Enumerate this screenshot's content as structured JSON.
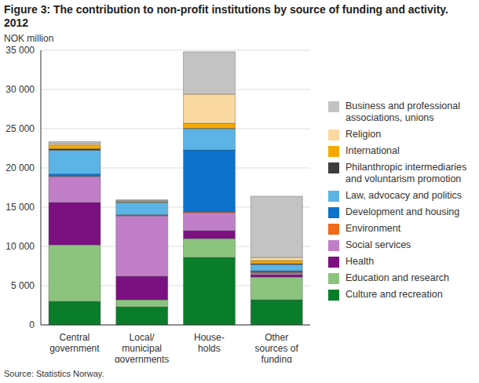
{
  "chart_data": {
    "type": "bar",
    "title": "Figure 3: The contribution to non-profit institutions by source of funding and activity. 2012",
    "y_label": "NOK million",
    "source": "Source: Statistics Norway.",
    "categories": [
      "Central\ngovernment",
      "Local/\nmunicipal\ngovernments",
      "House-\nholds",
      "Other\nsources of\nfunding"
    ],
    "stacked": true,
    "grid": true,
    "legend": "right",
    "ylim": [
      0,
      35000
    ],
    "yticks": [
      0,
      {
        "value": 5000,
        "label": "5 000"
      },
      {
        "value": 10000,
        "label": "10 000"
      },
      {
        "value": 15000,
        "label": "15 000"
      },
      {
        "value": 20000,
        "label": "20 000"
      },
      {
        "value": 25000,
        "label": "25 000"
      },
      {
        "value": 30000,
        "label": "30 000"
      },
      {
        "value": 35000,
        "label": "35 000"
      }
    ],
    "series": [
      {
        "name": "Culture and recreation",
        "color": "#0a7d2b",
        "values": [
          3000,
          2300,
          8600,
          3200
        ]
      },
      {
        "name": "Education and research",
        "color": "#8cc47e",
        "values": [
          7200,
          900,
          2400,
          2900
        ]
      },
      {
        "name": "Health",
        "color": "#7b1080",
        "values": [
          5400,
          3000,
          1000,
          300
        ]
      },
      {
        "name": "Social services",
        "color": "#c07fc8",
        "values": [
          3300,
          7700,
          2300,
          200
        ]
      },
      {
        "name": "Environment",
        "color": "#f26a1b",
        "values": [
          50,
          50,
          100,
          100
        ]
      },
      {
        "name": "Development and housing",
        "color": "#0c72cc",
        "values": [
          300,
          100,
          7900,
          200
        ]
      },
      {
        "name": "Law, advocacy and politics",
        "color": "#5bb4e5",
        "values": [
          3000,
          1550,
          2700,
          800
        ]
      },
      {
        "name": "Philanthropic intermediaries and voluntarism promotion",
        "color": "#3d3d3d",
        "values": [
          200,
          50,
          50,
          100
        ]
      },
      {
        "name": "International",
        "color": "#f5a800",
        "values": [
          500,
          100,
          650,
          400
        ]
      },
      {
        "name": "Religion",
        "color": "#fad9a1",
        "values": [
          200,
          100,
          3700,
          400
        ]
      },
      {
        "name": "Business and professional associations, unions",
        "color": "#c3c3c3",
        "values": [
          200,
          100,
          5400,
          7800
        ]
      }
    ]
  }
}
